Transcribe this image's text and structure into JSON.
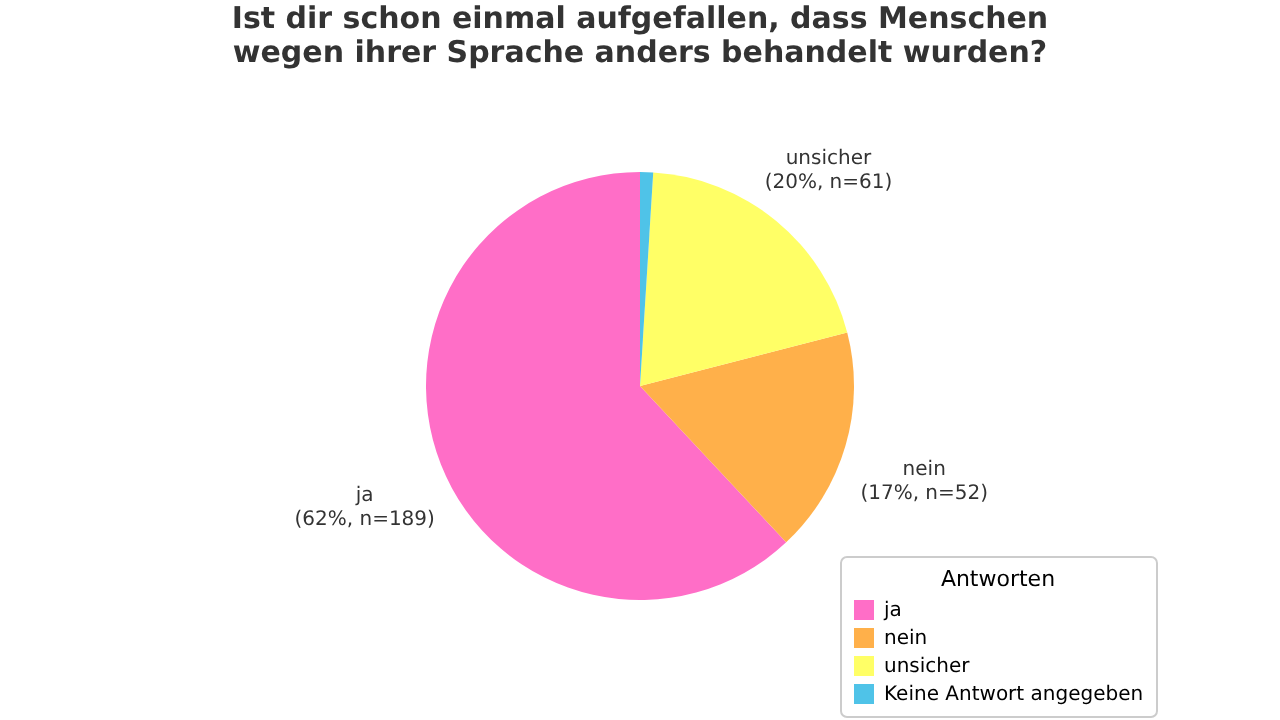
{
  "chart_data": {
    "type": "pie",
    "title": "Ist dir schon einmal aufgefallen, dass Menschen\nwegen ihrer Sprache anders behandelt wurden?",
    "categories": [
      "ja",
      "nein",
      "unsicher",
      "Keine Antwort angegeben"
    ],
    "values": [
      189,
      52,
      61,
      3
    ],
    "value_labels": [
      "(62%, n=189)",
      "(17%, n=52)",
      "(20%, n=61)",
      null
    ],
    "colors": [
      "#ff6ec7",
      "#ffb04a",
      "#ffff66",
      "#4fc3e8"
    ],
    "legend_title": "Antworten",
    "legend": "bottom right"
  }
}
